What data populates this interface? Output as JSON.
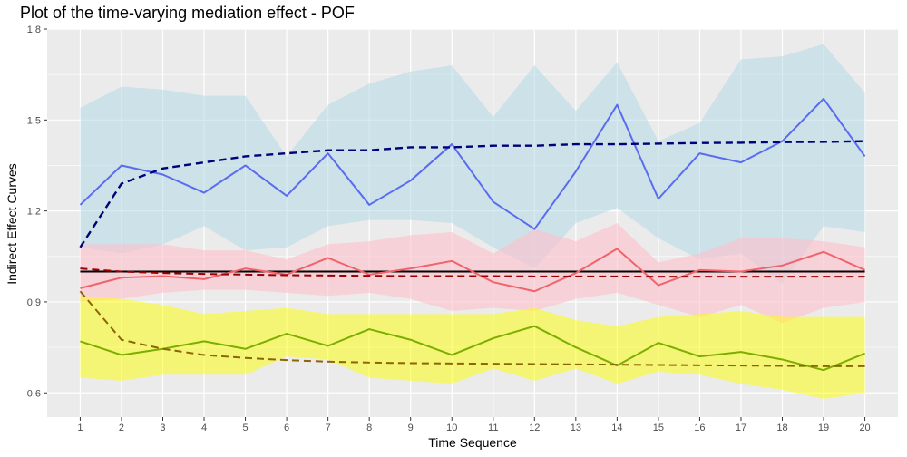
{
  "chart_data": {
    "type": "line",
    "title": "Plot of the time-varying mediation effect - POF",
    "xlabel": "Time Sequence",
    "ylabel": "Indirect Effect Curves",
    "x": [
      1,
      2,
      3,
      4,
      5,
      6,
      7,
      8,
      9,
      10,
      11,
      12,
      13,
      14,
      15,
      16,
      17,
      18,
      19,
      20
    ],
    "x_tick_labels": [
      "1",
      "2",
      "3",
      "4",
      "5",
      "6",
      "7",
      "8",
      "9",
      "10",
      "11",
      "12",
      "13",
      "14",
      "15",
      "16",
      "17",
      "18",
      "19",
      "20"
    ],
    "xlim": [
      0.2,
      20.8
    ],
    "ylim": [
      0.52,
      1.8
    ],
    "y_ticks": [
      0.6,
      0.9,
      1.2,
      1.5,
      1.8
    ],
    "y_tick_labels": [
      "0.6",
      "0.9",
      "1.2",
      "1.5",
      "1.8"
    ],
    "grid": true,
    "panel_background": "#ebebeb",
    "grid_color": "#ffffff",
    "reference_line": {
      "y": 1.0,
      "color": "#000000"
    },
    "bands": [
      {
        "fill": "#add8e6",
        "opacity": 0.5,
        "lower": [
          1.08,
          1.06,
          1.09,
          1.15,
          1.07,
          1.08,
          1.15,
          1.17,
          1.17,
          1.16,
          1.08,
          1.01,
          1.16,
          1.21,
          1.11,
          1.04,
          1.06,
          0.96,
          1.15,
          1.13
        ],
        "upper": [
          1.54,
          1.61,
          1.6,
          1.58,
          1.58,
          1.38,
          1.55,
          1.62,
          1.66,
          1.68,
          1.51,
          1.68,
          1.53,
          1.69,
          1.43,
          1.49,
          1.7,
          1.71,
          1.75,
          1.59
        ]
      },
      {
        "fill": "#ffc0cb",
        "opacity": 0.6,
        "lower": [
          0.9,
          0.91,
          0.93,
          0.94,
          0.94,
          0.93,
          0.92,
          0.93,
          0.91,
          0.87,
          0.88,
          0.87,
          0.91,
          0.93,
          0.89,
          0.85,
          0.89,
          0.83,
          0.88,
          0.9
        ],
        "upper": [
          1.09,
          1.09,
          1.09,
          1.07,
          1.07,
          1.04,
          1.09,
          1.1,
          1.12,
          1.13,
          1.06,
          1.14,
          1.1,
          1.16,
          1.03,
          1.06,
          1.11,
          1.11,
          1.1,
          1.08
        ]
      },
      {
        "fill": "#ffff00",
        "opacity": 0.5,
        "lower": [
          0.65,
          0.64,
          0.66,
          0.66,
          0.66,
          0.72,
          0.71,
          0.65,
          0.64,
          0.63,
          0.68,
          0.64,
          0.68,
          0.63,
          0.67,
          0.66,
          0.63,
          0.61,
          0.58,
          0.6
        ],
        "upper": [
          0.92,
          0.91,
          0.89,
          0.86,
          0.87,
          0.88,
          0.86,
          0.86,
          0.86,
          0.86,
          0.86,
          0.88,
          0.84,
          0.82,
          0.85,
          0.86,
          0.87,
          0.85,
          0.85,
          0.85
        ]
      }
    ],
    "series": [
      {
        "color": "#5b6bf0",
        "dash": false,
        "width": 2,
        "values": [
          1.22,
          1.35,
          1.32,
          1.26,
          1.35,
          1.25,
          1.39,
          1.22,
          1.3,
          1.42,
          1.23,
          1.14,
          1.33,
          1.55,
          1.24,
          1.39,
          1.36,
          1.43,
          1.57,
          1.38
        ]
      },
      {
        "color": "#00007a",
        "dash": true,
        "width": 2.4,
        "values": [
          1.08,
          1.29,
          1.34,
          1.36,
          1.38,
          1.39,
          1.4,
          1.4,
          1.41,
          1.41,
          1.415,
          1.415,
          1.42,
          1.42,
          1.422,
          1.424,
          1.425,
          1.427,
          1.428,
          1.43
        ]
      },
      {
        "color": "#f0636b",
        "dash": false,
        "width": 2,
        "values": [
          0.945,
          0.98,
          0.985,
          0.975,
          1.01,
          0.99,
          1.045,
          0.99,
          1.01,
          1.035,
          0.965,
          0.935,
          0.995,
          1.075,
          0.955,
          1.005,
          1.0,
          1.02,
          1.065,
          1.005
        ]
      },
      {
        "color": "#990000",
        "dash": true,
        "width": 2,
        "values": [
          1.01,
          1.0,
          0.995,
          0.992,
          0.99,
          0.988,
          0.987,
          0.986,
          0.985,
          0.985,
          0.985,
          0.984,
          0.984,
          0.984,
          0.983,
          0.983,
          0.983,
          0.983,
          0.983,
          0.983
        ]
      },
      {
        "color": "#7cae00",
        "dash": false,
        "width": 2,
        "values": [
          0.77,
          0.725,
          0.745,
          0.77,
          0.745,
          0.795,
          0.755,
          0.81,
          0.775,
          0.725,
          0.78,
          0.82,
          0.75,
          0.69,
          0.765,
          0.72,
          0.735,
          0.71,
          0.675,
          0.73
        ]
      },
      {
        "color": "#8b6508",
        "dash": true,
        "width": 2,
        "values": [
          0.935,
          0.775,
          0.745,
          0.725,
          0.715,
          0.708,
          0.703,
          0.7,
          0.698,
          0.697,
          0.696,
          0.695,
          0.694,
          0.693,
          0.692,
          0.691,
          0.69,
          0.689,
          0.688,
          0.688
        ]
      }
    ]
  }
}
